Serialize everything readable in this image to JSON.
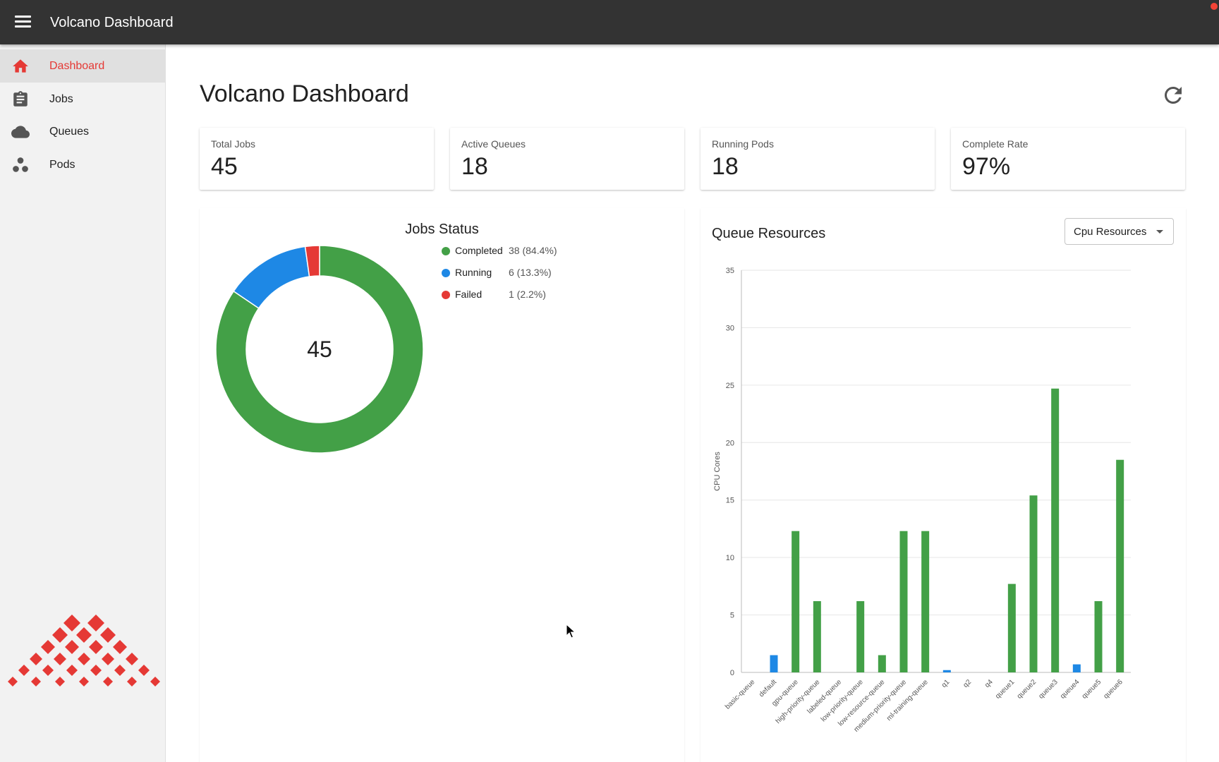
{
  "app": {
    "title": "Volcano Dashboard"
  },
  "sidebar": {
    "items": [
      {
        "label": "Dashboard",
        "icon": "home-icon",
        "active": true
      },
      {
        "label": "Jobs",
        "icon": "clipboard-icon",
        "active": false
      },
      {
        "label": "Queues",
        "icon": "cloud-icon",
        "active": false
      },
      {
        "label": "Pods",
        "icon": "pods-icon",
        "active": false
      }
    ]
  },
  "page": {
    "title": "Volcano Dashboard",
    "refresh_icon": "refresh-icon"
  },
  "stats": [
    {
      "label": "Total Jobs",
      "value": "45"
    },
    {
      "label": "Active Queues",
      "value": "18"
    },
    {
      "label": "Running Pods",
      "value": "18"
    },
    {
      "label": "Complete Rate",
      "value": "97%"
    }
  ],
  "jobs_status": {
    "title": "Jobs Status",
    "total": "45",
    "legend": [
      {
        "name": "Completed",
        "value": "38 (84.4%)",
        "color": "#43a047"
      },
      {
        "name": "Running",
        "value": "6 (13.3%)",
        "color": "#1e88e5"
      },
      {
        "name": "Failed",
        "value": "1 (2.2%)",
        "color": "#e53935"
      }
    ]
  },
  "queue_resources": {
    "title": "Queue Resources",
    "select_value": "Cpu Resources"
  },
  "colors": {
    "accent": "#e53935",
    "appbar": "#333333",
    "green": "#43a047",
    "blue": "#1e88e5"
  },
  "chart_data": [
    {
      "type": "pie",
      "title": "Jobs Status",
      "categories": [
        "Completed",
        "Running",
        "Failed"
      ],
      "values": [
        38,
        6,
        1
      ],
      "center_label": "45"
    },
    {
      "type": "bar",
      "title": "Queue Resources",
      "ylabel": "CPU Cores",
      "xlabel": "",
      "ylim": [
        0,
        35
      ],
      "yticks": [
        0,
        5,
        10,
        15,
        20,
        25,
        30,
        35
      ],
      "categories": [
        "basic-queue",
        "default",
        "gpu-queue",
        "high-priority-queue",
        "labeled-queue",
        "low-priority-queue",
        "low-resource-queue",
        "medium-priority-queue",
        "ml-training-queue",
        "q1",
        "q2",
        "q4",
        "queue1",
        "queue2",
        "queue3",
        "queue4",
        "queue5",
        "queue6"
      ],
      "series": [
        {
          "name": "CPU",
          "values": [
            0,
            1.5,
            12.3,
            6.2,
            0,
            6.2,
            1.5,
            12.3,
            12.3,
            0.2,
            0,
            0,
            7.7,
            15.4,
            24.7,
            0.7,
            6.2,
            18.5
          ]
        }
      ],
      "bar_colors": [
        "#1e88e5",
        "#1e88e5",
        "#43a047",
        "#43a047",
        "#43a047",
        "#43a047",
        "#43a047",
        "#43a047",
        "#43a047",
        "#1e88e5",
        "#43a047",
        "#43a047",
        "#43a047",
        "#43a047",
        "#43a047",
        "#1e88e5",
        "#43a047",
        "#43a047"
      ]
    }
  ]
}
